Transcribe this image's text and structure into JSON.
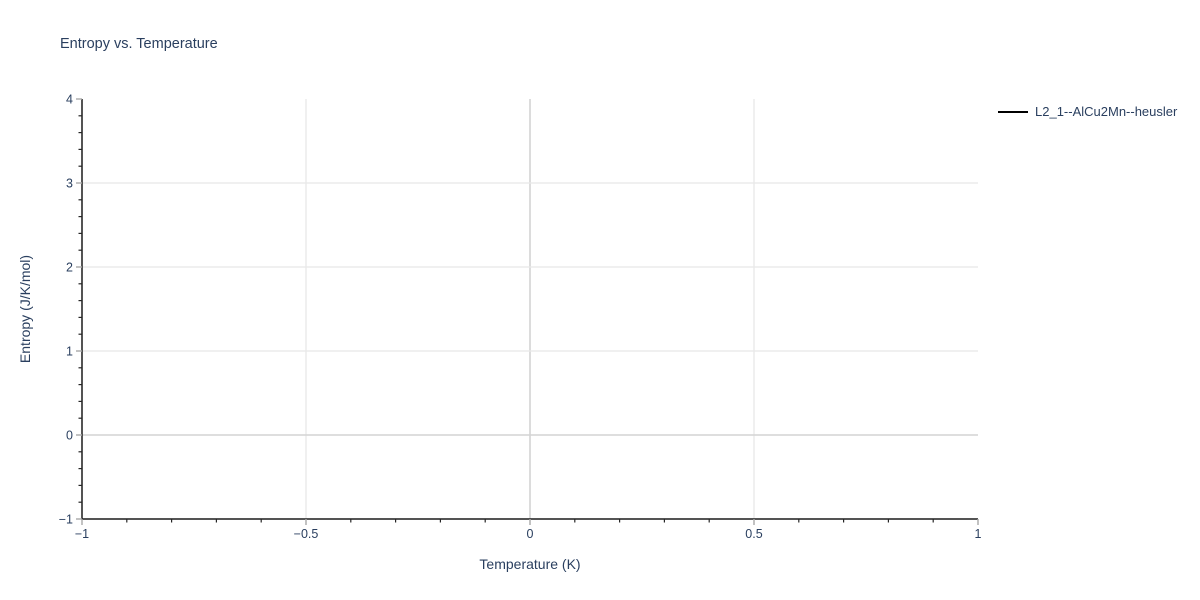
{
  "page": {
    "background": "#ffffff"
  },
  "chart_data": {
    "type": "line",
    "title": "Entropy vs. Temperature",
    "xlabel": "Temperature (K)",
    "ylabel": "Entropy (J/K/mol)",
    "xlim": [
      -1,
      1
    ],
    "ylim": [
      -1,
      4
    ],
    "x_tick_values": [
      -1,
      -0.5,
      0,
      0.5,
      1
    ],
    "x_tick_labels": [
      "−1",
      "−0.5",
      "0",
      "0.5",
      "1"
    ],
    "x_minor_step": 0.1,
    "y_tick_values": [
      -1,
      0,
      1,
      2,
      3,
      4
    ],
    "y_tick_labels": [
      "−1",
      "0",
      "1",
      "2",
      "3",
      "4"
    ],
    "y_minor_step": 0.2,
    "grid": true,
    "zerolines": true,
    "legend_position": "outside-top-right",
    "series": [
      {
        "name": "L2_1--AlCu2Mn--heusler",
        "color": "#000000",
        "x": [],
        "y": []
      }
    ],
    "colors": {
      "text": "#2a3f5f",
      "axis_line": "#1c1c1c",
      "grid_line": "#e8e8e8",
      "zero_line": "#d4d4d4",
      "major_tick": "#a9a9a9",
      "minor_tick": "#262626"
    }
  }
}
